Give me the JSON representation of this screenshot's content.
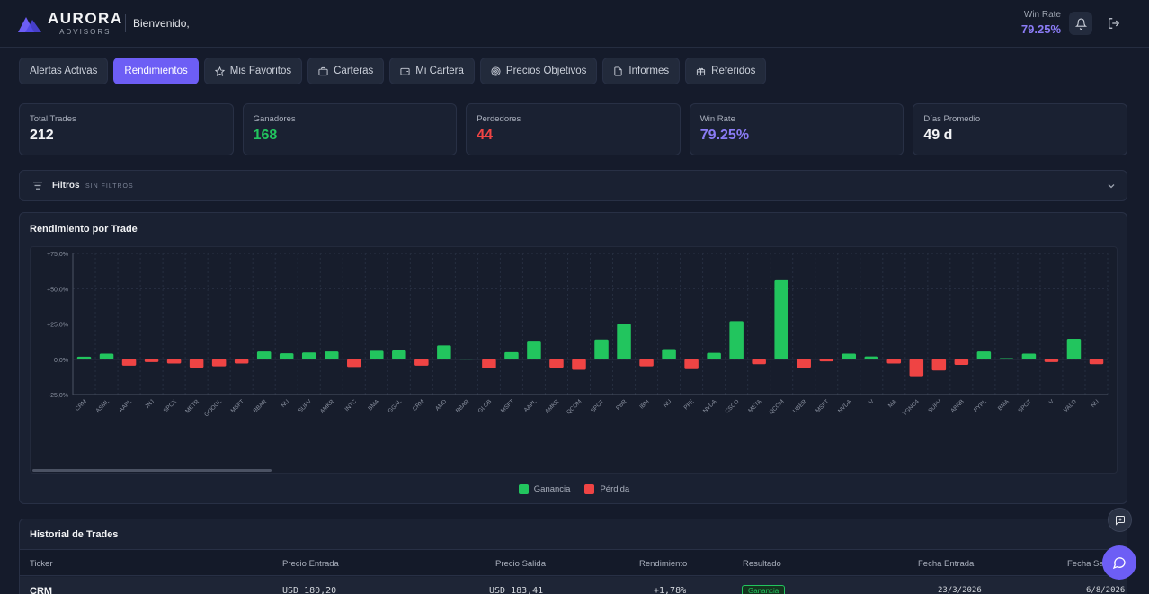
{
  "header": {
    "brand_name": "AURORA",
    "brand_sub": "ADVISORS",
    "welcome": "Bienvenido,",
    "win_rate_label": "Win Rate",
    "win_rate_value": "79.25%",
    "icons": [
      "aurora-logo",
      "bell-icon",
      "logout-icon"
    ]
  },
  "tabs": [
    {
      "label": "Alertas Activas",
      "icon": "",
      "active": false
    },
    {
      "label": "Rendimientos",
      "icon": "",
      "active": true
    },
    {
      "label": "Mis Favoritos",
      "icon": "star-icon",
      "active": false
    },
    {
      "label": "Carteras",
      "icon": "briefcase-icon",
      "active": false
    },
    {
      "label": "Mi Cartera",
      "icon": "wallet-icon",
      "active": false
    },
    {
      "label": "Precios Objetivos",
      "icon": "target-icon",
      "active": false
    },
    {
      "label": "Informes",
      "icon": "document-icon",
      "active": false
    },
    {
      "label": "Referidos",
      "icon": "gift-icon",
      "active": false
    }
  ],
  "stats": [
    {
      "label": "Total Trades",
      "value": "212",
      "color": "#f3f4f6"
    },
    {
      "label": "Ganadores",
      "value": "168",
      "color": "#22c55e"
    },
    {
      "label": "Perdedores",
      "value": "44",
      "color": "#ef4444"
    },
    {
      "label": "Win Rate",
      "value": "79.25%",
      "color": "#8b7cf6"
    },
    {
      "label": "Días Promedio",
      "value": "49 d",
      "color": "#f3f4f6"
    }
  ],
  "filters": {
    "label": "Filtros",
    "state": "SIN FILTROS"
  },
  "chart_panel": {
    "title": "Rendimiento por Trade"
  },
  "chart_data": {
    "type": "bar",
    "title": "Rendimiento por Trade",
    "xlabel": "",
    "ylabel": "",
    "ylim": [
      -25,
      75
    ],
    "yticks": [
      75,
      50,
      25,
      0,
      -25
    ],
    "ytick_labels": [
      "+75,0%",
      "+50,0%",
      "+25,0%",
      "0,0%",
      "-25,0%"
    ],
    "grid": true,
    "legend_position": "bottom",
    "categories": [
      "CRM",
      "ASML",
      "AAPL",
      "JNJ",
      "SPCX",
      "METR",
      "GOOGL",
      "MSFT",
      "BBAR",
      "NU",
      "SUPV",
      "AMKR",
      "INTC",
      "BMA",
      "GGAL",
      "CRM",
      "AMD",
      "BBAR",
      "GLOB",
      "MSFT",
      "AAPL",
      "AMKR",
      "QCOM",
      "SPOT",
      "PBR",
      "IBM",
      "NU",
      "PFE",
      "NVDA",
      "CSCO",
      "META",
      "QCOM",
      "UBER",
      "MSFT",
      "NVDA",
      "V",
      "MA",
      "TGNO4",
      "SUPV",
      "ABNB",
      "PYPL",
      "BMA",
      "SPOT",
      "V",
      "VALO",
      "NU"
    ],
    "values": [
      1.8,
      4.0,
      -4.5,
      -2.0,
      -3.0,
      -6.0,
      -5.0,
      -3.0,
      5.5,
      4.2,
      4.8,
      5.5,
      -5.5,
      6.0,
      6.2,
      -4.5,
      9.8,
      0.4,
      -6.5,
      5.0,
      12.5,
      -6.0,
      -7.5,
      14.0,
      25.0,
      -5.0,
      7.2,
      -7.0,
      4.5,
      27.0,
      -3.5,
      56.0,
      -6.0,
      -1.5,
      4.0,
      2.0,
      -3.0,
      -12.0,
      -8.0,
      -4.0,
      5.5,
      0.8,
      4.0,
      -2.0,
      14.5,
      -3.5
    ],
    "legend": [
      {
        "name": "Ganancia",
        "color": "#22c55e"
      },
      {
        "name": "Pérdida",
        "color": "#ef4444"
      }
    ]
  },
  "history": {
    "title": "Historial de Trades",
    "columns": [
      "Ticker",
      "Precio Entrada",
      "Precio Salida",
      "Rendimiento",
      "Resultado",
      "Fecha Entrada",
      "Fecha Salida"
    ],
    "rows": [
      {
        "ticker": "CRM",
        "entry": "USD 180,20",
        "exit": "USD 183,41",
        "return": "+1,78%",
        "result": "Ganancia",
        "date_in": "23/3/2026",
        "date_out": "6/8/2026"
      }
    ]
  },
  "colors": {
    "accent": "#6d5ef5",
    "gain": "#22c55e",
    "loss": "#ef4444",
    "background": "#151b2b"
  }
}
